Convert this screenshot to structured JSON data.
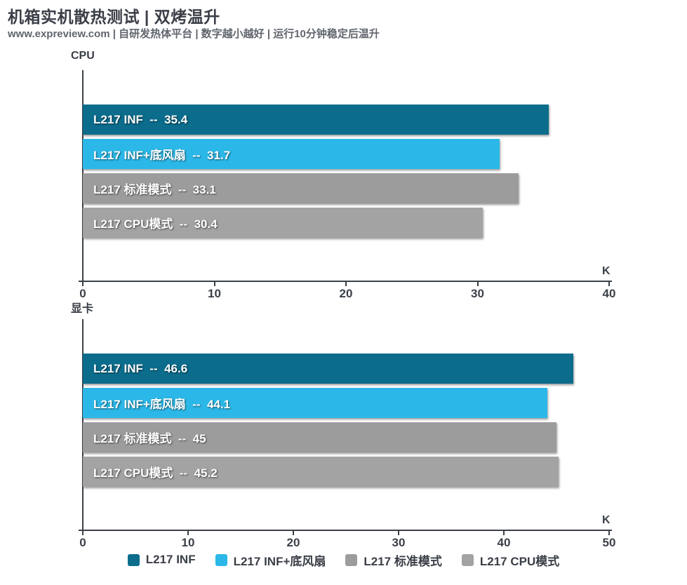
{
  "header": {
    "title": "机箱实机散热测试 | 双烤温升",
    "subtitle": "www.expreview.com | 自研发热体平台 | 数字越小越好 | 运行10分钟稳定后温升"
  },
  "colors": {
    "teal": "#0B6C8C",
    "light_blue": "#2BB8E8",
    "gray_standard": "#9C9C9C",
    "gray_cpu": "#A3A3A3",
    "axis": "#3B4048",
    "title_text": "#3A3E46",
    "subtitle_text": "#60656D"
  },
  "chart_data": [
    {
      "type": "bar",
      "orientation": "horizontal",
      "title": "CPU",
      "unit": "K",
      "categories": [
        "L217 INF",
        "L217 INF+底风扇",
        "L217 标准模式",
        "L217 CPU模式"
      ],
      "values": [
        35.4,
        31.7,
        33.1,
        30.4
      ],
      "bar_colors": [
        "#0B6C8C",
        "#2BB8E8",
        "#9C9C9C",
        "#A3A3A3"
      ],
      "separator": "  --  ",
      "xlim": [
        0,
        40
      ],
      "ticks": [
        0,
        10,
        20,
        30,
        40
      ],
      "grid": false,
      "value_labels_inside_bar": true
    },
    {
      "type": "bar",
      "orientation": "horizontal",
      "title": "显卡",
      "unit": "K",
      "categories": [
        "L217 INF",
        "L217 INF+底风扇",
        "L217 标准模式",
        "L217 CPU模式"
      ],
      "values": [
        46.6,
        44.1,
        45,
        45.2
      ],
      "bar_colors": [
        "#0B6C8C",
        "#2BB8E8",
        "#9C9C9C",
        "#A3A3A3"
      ],
      "separator": "  --  ",
      "xlim": [
        0,
        50
      ],
      "ticks": [
        0,
        10,
        20,
        30,
        40,
        50
      ],
      "grid": false,
      "value_labels_inside_bar": true
    }
  ],
  "legend": {
    "position": "bottom-center",
    "items": [
      {
        "label": "L217 INF",
        "color": "#0B6C8C"
      },
      {
        "label": "L217 INF+底风扇",
        "color": "#2BB8E8"
      },
      {
        "label": "L217 标准模式",
        "color": "#9C9C9C"
      },
      {
        "label": "L217 CPU模式",
        "color": "#A3A3A3"
      }
    ]
  }
}
